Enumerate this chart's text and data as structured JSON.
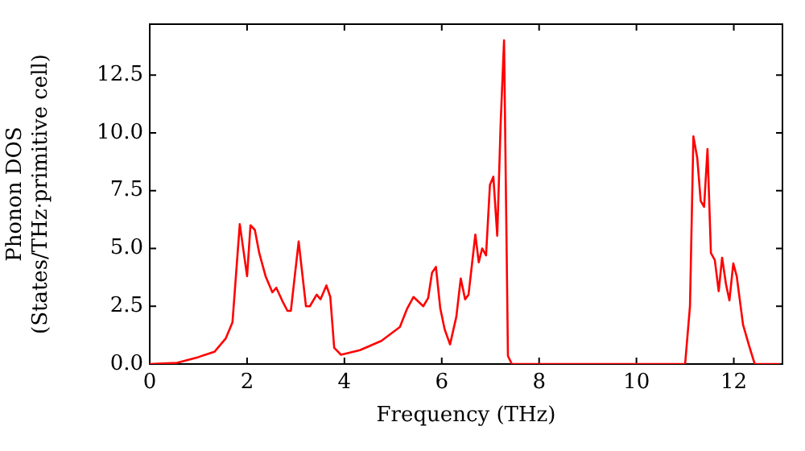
{
  "chart_data": {
    "type": "line",
    "xlabel": "Frequency (THz)",
    "ylabel": "Phonon DOS\n(States/THz·primitive cell)",
    "xlim": [
      0,
      13
    ],
    "ylim": [
      0,
      14.7
    ],
    "xticks": [
      0,
      2,
      4,
      6,
      8,
      10,
      12
    ],
    "yticks": [
      {
        "value": 0,
        "label": "0.0"
      },
      2.5,
      {
        "value": 5,
        "label": "5.0"
      },
      7.5,
      {
        "value": 10,
        "label": "10.0"
      },
      12.5
    ],
    "x": [
      0,
      0.56,
      1.0,
      1.33,
      1.56,
      1.7,
      1.85,
      2.0,
      2.07,
      2.16,
      2.25,
      2.38,
      2.52,
      2.6,
      2.72,
      2.83,
      2.9,
      3.06,
      3.21,
      3.29,
      3.43,
      3.51,
      3.63,
      3.71,
      3.79,
      3.93,
      4.32,
      4.76,
      5.14,
      5.29,
      5.42,
      5.62,
      5.72,
      5.8,
      5.88,
      5.97,
      6.06,
      6.17,
      6.3,
      6.39,
      6.48,
      6.55,
      6.69,
      6.76,
      6.83,
      6.91,
      6.99,
      7.06,
      7.14,
      7.21,
      7.28,
      7.36,
      7.44,
      11.0,
      11.1,
      11.17,
      11.25,
      11.32,
      11.39,
      11.46,
      11.53,
      11.61,
      11.69,
      11.76,
      11.84,
      11.91,
      11.99,
      12.06,
      12.19,
      12.32,
      12.43,
      12.95
    ],
    "series": [
      {
        "color": "#ff0000",
        "values": [
          0,
          0.05,
          0.3,
          0.53,
          1.1,
          1.8,
          6.05,
          3.8,
          6.0,
          5.8,
          4.8,
          3.8,
          3.1,
          3.3,
          2.75,
          2.3,
          2.3,
          5.3,
          2.5,
          2.5,
          3.0,
          2.8,
          3.4,
          2.9,
          0.7,
          0.4,
          0.6,
          1.0,
          1.6,
          2.4,
          2.9,
          2.5,
          2.85,
          3.95,
          4.2,
          2.4,
          1.5,
          0.85,
          2.05,
          3.7,
          2.8,
          3.0,
          5.6,
          4.4,
          5.0,
          4.7,
          7.75,
          8.1,
          5.55,
          10.4,
          14.0,
          0.35,
          0,
          0,
          2.5,
          9.85,
          8.9,
          7.05,
          6.8,
          9.3,
          4.8,
          4.5,
          3.15,
          4.6,
          3.45,
          2.75,
          4.35,
          3.8,
          1.7,
          0.75,
          0,
          0
        ]
      }
    ]
  }
}
